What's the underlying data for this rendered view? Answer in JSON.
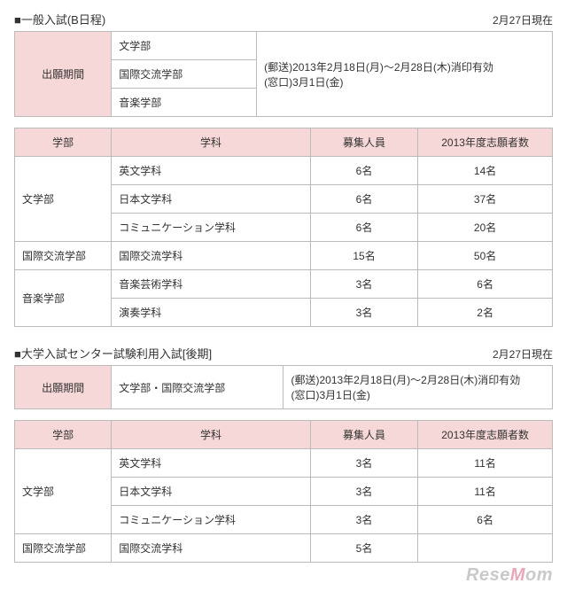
{
  "sections": [
    {
      "title": "■一般入試(B日程)",
      "asof": "2月27日現在",
      "period": {
        "label": "出願期間",
        "faculties": [
          "文学部",
          "国際交流学部",
          "音楽学部"
        ],
        "note_lines": [
          "(郵送)2013年2月18日(月)～2月28日(木)消印有効",
          "(窓口)3月1日(金)"
        ]
      },
      "table": {
        "headers": [
          "学部",
          "学科",
          "募集人員",
          "2013年度志願者数"
        ],
        "groups": [
          {
            "faculty": "文学部",
            "rows": [
              {
                "dept": "英文学科",
                "capacity": "6名",
                "applicants": "14名"
              },
              {
                "dept": "日本文学科",
                "capacity": "6名",
                "applicants": "37名"
              },
              {
                "dept": "コミュニケーション学科",
                "capacity": "6名",
                "applicants": "20名"
              }
            ]
          },
          {
            "faculty": "国際交流学部",
            "rows": [
              {
                "dept": "国際交流学科",
                "capacity": "15名",
                "applicants": "50名"
              }
            ]
          },
          {
            "faculty": "音楽学部",
            "rows": [
              {
                "dept": "音楽芸術学科",
                "capacity": "3名",
                "applicants": "6名"
              },
              {
                "dept": "演奏学科",
                "capacity": "3名",
                "applicants": "2名"
              }
            ]
          }
        ]
      }
    },
    {
      "title": "■大学入試センター試験利用入試[後期]",
      "asof": "2月27日現在",
      "period": {
        "label": "出願期間",
        "faculties": [
          "文学部・国際交流学部"
        ],
        "note_lines": [
          "(郵送)2013年2月18日(月)～2月28日(木)消印有効",
          "(窓口)3月1日(金)"
        ]
      },
      "table": {
        "headers": [
          "学部",
          "学科",
          "募集人員",
          "2013年度志願者数"
        ],
        "groups": [
          {
            "faculty": "文学部",
            "rows": [
              {
                "dept": "英文学科",
                "capacity": "3名",
                "applicants": "11名"
              },
              {
                "dept": "日本文学科",
                "capacity": "3名",
                "applicants": "11名"
              },
              {
                "dept": "コミュニケーション学科",
                "capacity": "3名",
                "applicants": "6名"
              }
            ]
          },
          {
            "faculty": "国際交流学部",
            "rows": [
              {
                "dept": "国際交流学科",
                "capacity": "5名",
                "applicants": ""
              }
            ]
          }
        ]
      }
    }
  ],
  "watermark": {
    "left": "R",
    "mid": "ese",
    "accent": "M",
    "right": "om"
  },
  "col_widths": {
    "faculty": "18%",
    "dept": "37%",
    "capacity": "20%",
    "applicants": "25%"
  },
  "period_col_widths": {
    "label": "18%",
    "faculty": "27%",
    "note": "55%"
  },
  "period_col_widths_single": {
    "label": "18%",
    "faculty": "32%",
    "note": "50%"
  }
}
